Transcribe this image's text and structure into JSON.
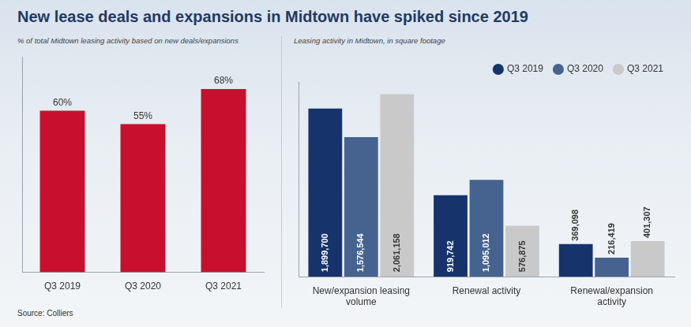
{
  "title": "New lease deals and expansions in Midtown have spiked since 2019",
  "source": "Source: Colliers",
  "chart_data": [
    {
      "type": "bar",
      "subtitle": "% of total Midtown leasing activity based on new deals/expansions",
      "categories": [
        "Q3 2019",
        "Q3 2020",
        "Q3 2021"
      ],
      "values": [
        60,
        55,
        68
      ],
      "value_labels": [
        "60%",
        "55%",
        "68%"
      ],
      "color": "#c8102e",
      "ylim": [
        0,
        80
      ],
      "data_labels": true,
      "tick_labels": "x",
      "grid": false
    },
    {
      "type": "bar",
      "subtitle": "Leasing activity in Midtown, in square footage",
      "categories": [
        "New/expansion leasing volume",
        "Renewal activity",
        "Renewal/expansion activity"
      ],
      "series": [
        {
          "name": "Q3 2019",
          "color": "#17336b",
          "values": [
            1899700,
            919742,
            369098
          ],
          "value_labels": [
            "1,899,700",
            "919,742",
            "369,098"
          ]
        },
        {
          "name": "Q3 2020",
          "color": "#46638f",
          "values": [
            1576544,
            1095012,
            216419
          ],
          "value_labels": [
            "1,576,544",
            "1,095,012",
            "216,419"
          ]
        },
        {
          "name": "Q3 2021",
          "color": "#c9c9c9",
          "values": [
            2061158,
            576875,
            401307
          ],
          "value_labels": [
            "2,061,158",
            "576,875",
            "401,307"
          ]
        }
      ],
      "ylim": [
        0,
        2200000
      ],
      "data_labels": true,
      "tick_labels": "x",
      "grid": false,
      "legend": "top"
    }
  ]
}
